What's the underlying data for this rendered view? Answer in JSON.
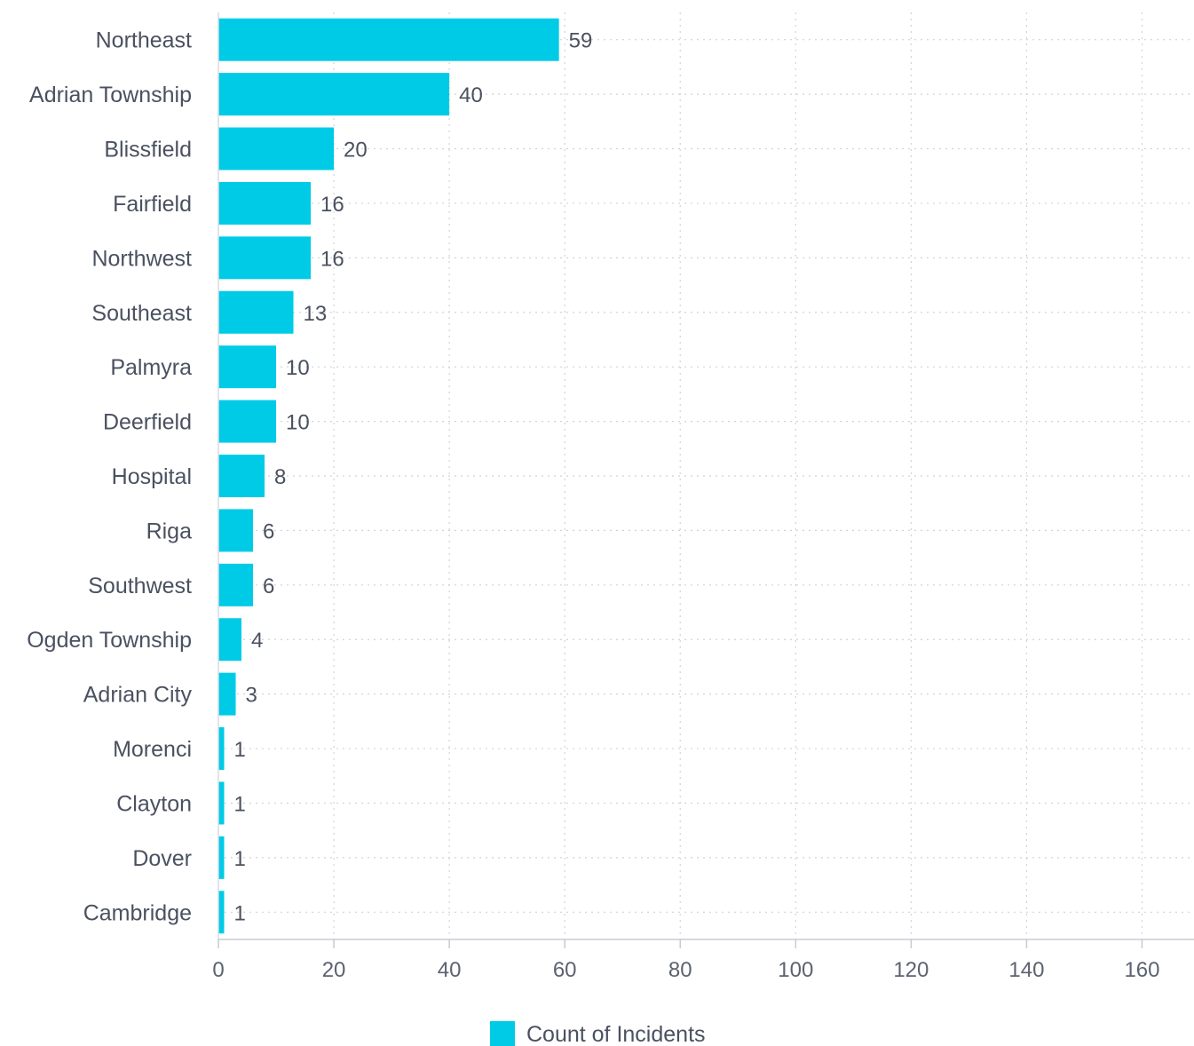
{
  "chart_data": {
    "type": "bar",
    "orientation": "horizontal",
    "categories": [
      "Northeast",
      "Adrian Township",
      "Blissfield",
      "Fairfield",
      "Northwest",
      "Southeast",
      "Palmyra",
      "Deerfield",
      "Hospital",
      "Riga",
      "Southwest",
      "Ogden Township",
      "Adrian City",
      "Morenci",
      "Clayton",
      "Dover",
      "Cambridge"
    ],
    "series": [
      {
        "name": "Count of Incidents",
        "color": "#00cbe6",
        "values": [
          59,
          40,
          20,
          16,
          16,
          13,
          10,
          10,
          8,
          6,
          6,
          4,
          3,
          1,
          1,
          1,
          1
        ]
      }
    ],
    "xlim": [
      0,
      169
    ],
    "xticks": [
      0,
      20,
      40,
      60,
      80,
      100,
      120,
      140,
      160
    ],
    "grid": true,
    "legend_position": "bottom-center",
    "data_labels": true
  }
}
